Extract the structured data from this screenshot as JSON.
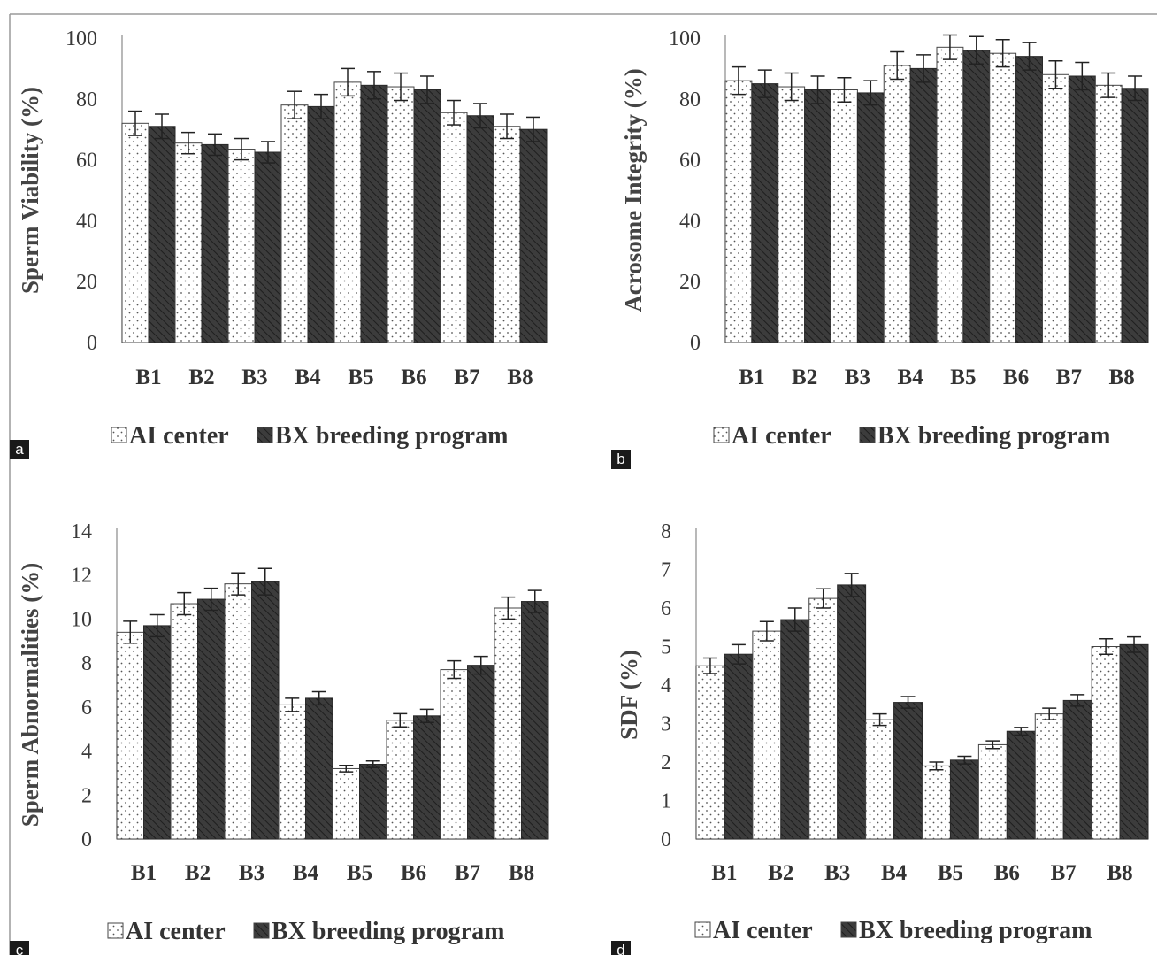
{
  "chart_data": [
    {
      "panel_label": "a",
      "type": "bar",
      "ylabel": "Sperm Viability (%)",
      "ylim": [
        0,
        100
      ],
      "yticks": [
        0,
        20,
        40,
        60,
        80,
        100
      ],
      "categories": [
        "B1",
        "B2",
        "B3",
        "B4",
        "B5",
        "B6",
        "B7",
        "B8"
      ],
      "series": [
        {
          "name": "AI center",
          "values": [
            72,
            65.5,
            63.5,
            78,
            85.5,
            84,
            75.5,
            71
          ],
          "errors": [
            4,
            3.5,
            3.5,
            4.5,
            4.5,
            4.5,
            4,
            4
          ]
        },
        {
          "name": "BX breeding program",
          "values": [
            71,
            65,
            62.5,
            77.5,
            84.5,
            83,
            74.5,
            70
          ],
          "errors": [
            4,
            3.5,
            3.5,
            4,
            4.5,
            4.5,
            4,
            4
          ]
        }
      ],
      "legend": "bottom",
      "grid": false
    },
    {
      "panel_label": "b",
      "type": "bar",
      "ylabel": "Acrosome Integrity (%)",
      "ylim": [
        0,
        100
      ],
      "yticks": [
        0,
        20,
        40,
        60,
        80,
        100
      ],
      "categories": [
        "B1",
        "B2",
        "B3",
        "B4",
        "B5",
        "B6",
        "B7",
        "B8"
      ],
      "series": [
        {
          "name": "AI center",
          "values": [
            86,
            84,
            83,
            91,
            97,
            95,
            88,
            84.5
          ],
          "errors": [
            4.5,
            4.5,
            4,
            4.5,
            4,
            4.5,
            4.5,
            4
          ]
        },
        {
          "name": "BX breeding program",
          "values": [
            85,
            83,
            82,
            90,
            96,
            94,
            87.5,
            83.5
          ],
          "errors": [
            4.5,
            4.5,
            4,
            4.5,
            4.5,
            4.5,
            4.5,
            4
          ]
        }
      ],
      "legend": "bottom",
      "grid": false
    },
    {
      "panel_label": "c",
      "type": "bar",
      "ylabel": "Sperm Abnormalities (%)",
      "ylim": [
        0,
        14
      ],
      "yticks": [
        0,
        2,
        4,
        6,
        8,
        10,
        12,
        14
      ],
      "categories": [
        "B1",
        "B2",
        "B3",
        "B4",
        "B5",
        "B6",
        "B7",
        "B8"
      ],
      "series": [
        {
          "name": "AI center",
          "values": [
            9.4,
            10.7,
            11.6,
            6.1,
            3.2,
            5.4,
            7.7,
            10.5
          ],
          "errors": [
            0.5,
            0.5,
            0.5,
            0.3,
            0.15,
            0.3,
            0.4,
            0.5
          ]
        },
        {
          "name": "BX breeding program",
          "values": [
            9.7,
            10.9,
            11.7,
            6.4,
            3.4,
            5.6,
            7.9,
            10.8
          ],
          "errors": [
            0.5,
            0.5,
            0.6,
            0.3,
            0.15,
            0.3,
            0.4,
            0.5
          ]
        }
      ],
      "legend": "bottom",
      "grid": false
    },
    {
      "panel_label": "d",
      "type": "bar",
      "ylabel": "SDF (%)",
      "ylim": [
        0,
        8
      ],
      "yticks": [
        0,
        1,
        2,
        3,
        4,
        5,
        6,
        7,
        8
      ],
      "categories": [
        "B1",
        "B2",
        "B3",
        "B4",
        "B5",
        "B6",
        "B7",
        "B8"
      ],
      "series": [
        {
          "name": "AI center",
          "values": [
            4.5,
            5.4,
            6.25,
            3.1,
            1.9,
            2.45,
            3.25,
            5.0
          ],
          "errors": [
            0.2,
            0.25,
            0.25,
            0.15,
            0.1,
            0.1,
            0.15,
            0.2
          ]
        },
        {
          "name": "BX breeding program",
          "values": [
            4.8,
            5.7,
            6.6,
            3.55,
            2.05,
            2.8,
            3.6,
            5.05
          ],
          "errors": [
            0.25,
            0.3,
            0.3,
            0.15,
            0.1,
            0.1,
            0.15,
            0.2
          ]
        }
      ],
      "legend": "bottom",
      "grid": false
    }
  ],
  "colors": {
    "ai_fill": "#ffffff",
    "ai_dot": "#555555",
    "bx_fill": "#3c3c3c",
    "bx_hatch": "#1e1e1e",
    "axis": "#888888",
    "label_box": "#1a1a1a"
  }
}
